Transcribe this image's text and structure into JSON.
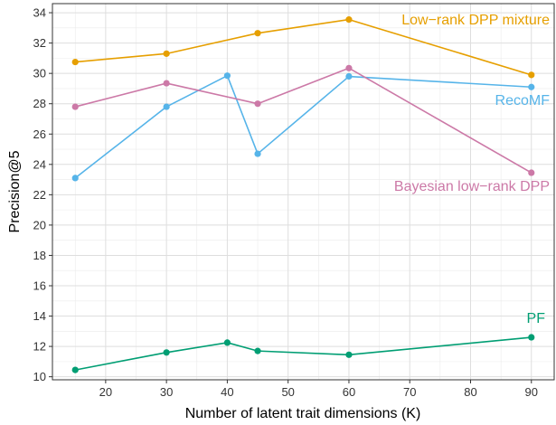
{
  "chart_data": {
    "type": "line",
    "xlabel": "Number of latent trait dimensions (K)",
    "ylabel": "Precision@5",
    "xlim": [
      11.25,
      93.75
    ],
    "ylim": [
      9.8,
      34.6
    ],
    "x_ticks": [
      20,
      30,
      40,
      50,
      60,
      70,
      80,
      90
    ],
    "y_ticks": [
      10,
      12,
      14,
      16,
      18,
      20,
      22,
      24,
      26,
      28,
      30,
      32,
      34
    ],
    "grid": true,
    "legend": "direct labels",
    "series": [
      {
        "name": "Low−rank DPP mixture",
        "color": "#E69F00",
        "x": [
          15,
          30,
          45,
          60,
          90
        ],
        "values": [
          30.75,
          31.3,
          32.65,
          33.55,
          29.9
        ]
      },
      {
        "name": "RecoMF",
        "color": "#56B4E9",
        "x": [
          15,
          30,
          40,
          45,
          60,
          90
        ],
        "values": [
          23.1,
          27.8,
          29.85,
          24.7,
          29.8,
          29.1
        ]
      },
      {
        "name": "Bayesian low−rank DPP",
        "color": "#CC79A7",
        "x": [
          15,
          30,
          45,
          60,
          90
        ],
        "values": [
          27.8,
          29.35,
          28.0,
          30.35,
          23.45
        ]
      },
      {
        "name": "PF",
        "color": "#009E73",
        "x": [
          15,
          30,
          40,
          45,
          60,
          90
        ],
        "values": [
          10.45,
          11.6,
          12.25,
          11.7,
          11.45,
          12.6
        ]
      }
    ]
  }
}
